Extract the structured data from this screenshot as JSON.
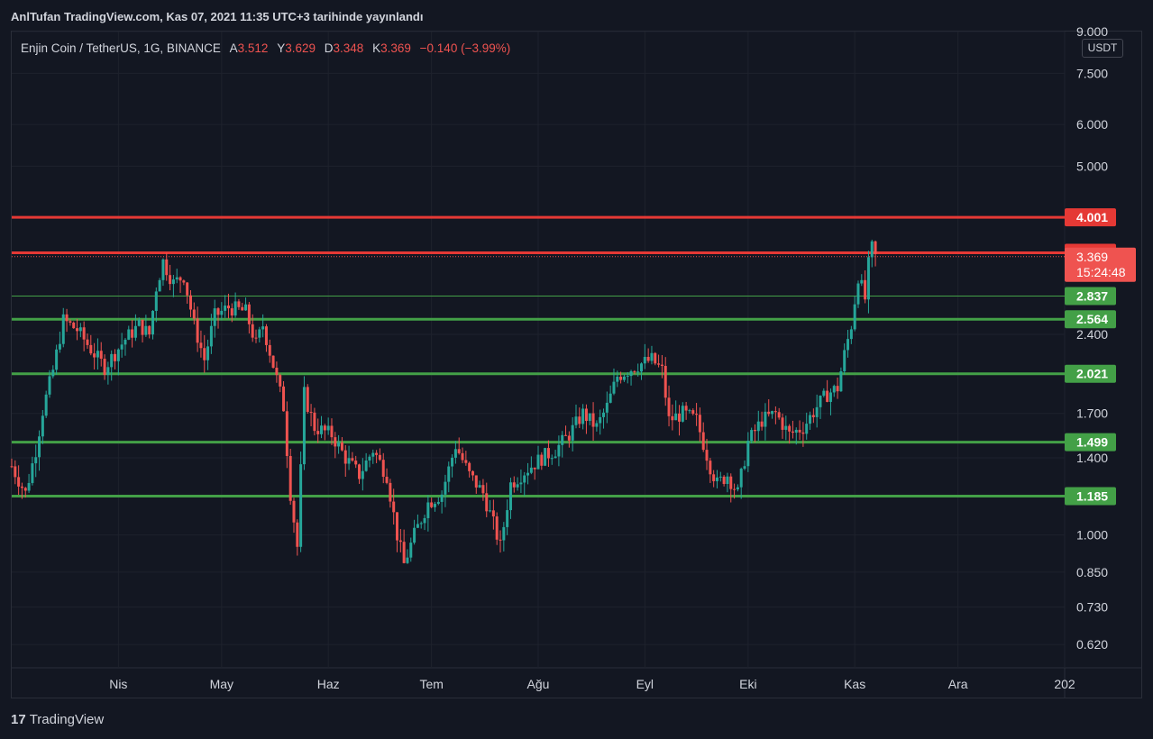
{
  "header": {
    "published": "AnlTufan TradingView.com, Kas 07, 2021 11:35 UTC+3 tarihinde yayınlandı"
  },
  "legend": {
    "symbol": "Enjin Coin / TetherUS, 1G, BINANCE",
    "open_label": "A",
    "open": "3.512",
    "high_label": "Y",
    "high": "3.629",
    "low_label": "D",
    "low": "3.348",
    "close_label": "K",
    "close": "3.369",
    "change": "−0.140 (−3.99%)"
  },
  "currency_badge": "USDT",
  "footer": {
    "logo_icon": "tradingview-logo-icon",
    "brand": "TradingView"
  },
  "colors": {
    "up": "#26a69a",
    "down": "#ef5350",
    "support": "#43a047",
    "resistance": "#e53935",
    "background": "#131722",
    "grid": "#1e222d"
  },
  "chart_data": {
    "type": "candlestick",
    "y_scale": "log",
    "ylim": [
      0.56,
      9.0
    ],
    "price_axis_ticks": [
      "9.000",
      "7.500",
      "6.000",
      "5.000",
      "2.400",
      "1.700",
      "1.400",
      "1.000",
      "0.850",
      "0.730",
      "0.620"
    ],
    "x_ticks": [
      {
        "label": "Nis",
        "date": "2021-04-01"
      },
      {
        "label": "May",
        "date": "2021-05-01"
      },
      {
        "label": "Haz",
        "date": "2021-06-01"
      },
      {
        "label": "Tem",
        "date": "2021-07-01"
      },
      {
        "label": "Ağu",
        "date": "2021-08-01"
      },
      {
        "label": "Eyl",
        "date": "2021-09-01"
      },
      {
        "label": "Eki",
        "date": "2021-10-01"
      },
      {
        "label": "Kas",
        "date": "2021-11-01"
      },
      {
        "label": "Ara",
        "date": "2021-12-01"
      },
      {
        "label": "202",
        "date": "2022-01-01"
      }
    ],
    "xlim": [
      "2021-03-01",
      "2022-01-01"
    ],
    "horizontal_levels": [
      {
        "value": 4.001,
        "label": "4.001",
        "kind": "resistance"
      },
      {
        "value": 3.427,
        "label": "3.427",
        "kind": "resistance"
      },
      {
        "value": 2.837,
        "label": "2.837",
        "kind": "support-thin"
      },
      {
        "value": 2.564,
        "label": "2.564",
        "kind": "support"
      },
      {
        "value": 2.021,
        "label": "2.021",
        "kind": "support"
      },
      {
        "value": 1.499,
        "label": "1.499",
        "kind": "support"
      },
      {
        "value": 1.185,
        "label": "1.185",
        "kind": "support"
      }
    ],
    "last_price": {
      "value": 3.369,
      "label": "3.369",
      "countdown": "15:24:48"
    },
    "price_anchors": [
      [
        "2021-03-01",
        1.35
      ],
      [
        "2021-03-05",
        1.2
      ],
      [
        "2021-03-08",
        1.45
      ],
      [
        "2021-03-10",
        1.72
      ],
      [
        "2021-03-13",
        2.05
      ],
      [
        "2021-03-16",
        2.55
      ],
      [
        "2021-03-20",
        2.45
      ],
      [
        "2021-03-24",
        2.25
      ],
      [
        "2021-03-28",
        2.08
      ],
      [
        "2021-04-03",
        2.35
      ],
      [
        "2021-04-07",
        2.5
      ],
      [
        "2021-04-10",
        2.4
      ],
      [
        "2021-04-12",
        2.95
      ],
      [
        "2021-04-14",
        3.3
      ],
      [
        "2021-04-17",
        3.0
      ],
      [
        "2021-04-20",
        3.1
      ],
      [
        "2021-04-23",
        2.5
      ],
      [
        "2021-04-26",
        2.15
      ],
      [
        "2021-04-29",
        2.6
      ],
      [
        "2021-05-03",
        2.7
      ],
      [
        "2021-05-08",
        2.65
      ],
      [
        "2021-05-11",
        2.3
      ],
      [
        "2021-05-13",
        2.5
      ],
      [
        "2021-05-16",
        2.1
      ],
      [
        "2021-05-19",
        1.75
      ],
      [
        "2021-05-21",
        1.2
      ],
      [
        "2021-05-23",
        0.95
      ],
      [
        "2021-05-25",
        1.85
      ],
      [
        "2021-05-28",
        1.6
      ],
      [
        "2021-06-02",
        1.55
      ],
      [
        "2021-06-06",
        1.4
      ],
      [
        "2021-06-10",
        1.3
      ],
      [
        "2021-06-14",
        1.45
      ],
      [
        "2021-06-18",
        1.3
      ],
      [
        "2021-06-21",
        1.0
      ],
      [
        "2021-06-23",
        0.88
      ],
      [
        "2021-06-26",
        1.0
      ],
      [
        "2021-06-30",
        1.15
      ],
      [
        "2021-07-04",
        1.2
      ],
      [
        "2021-07-08",
        1.48
      ],
      [
        "2021-07-12",
        1.3
      ],
      [
        "2021-07-16",
        1.2
      ],
      [
        "2021-07-19",
        1.05
      ],
      [
        "2021-07-21",
        0.95
      ],
      [
        "2021-07-24",
        1.25
      ],
      [
        "2021-07-28",
        1.32
      ],
      [
        "2021-08-02",
        1.4
      ],
      [
        "2021-08-06",
        1.45
      ],
      [
        "2021-08-10",
        1.55
      ],
      [
        "2021-08-14",
        1.7
      ],
      [
        "2021-08-18",
        1.6
      ],
      [
        "2021-08-21",
        1.75
      ],
      [
        "2021-08-24",
        2.0
      ],
      [
        "2021-08-27",
        2.05
      ],
      [
        "2021-08-30",
        2.1
      ],
      [
        "2021-09-03",
        2.15
      ],
      [
        "2021-09-06",
        2.05
      ],
      [
        "2021-09-08",
        1.65
      ],
      [
        "2021-09-12",
        1.7
      ],
      [
        "2021-09-16",
        1.65
      ],
      [
        "2021-09-20",
        1.35
      ],
      [
        "2021-09-22",
        1.25
      ],
      [
        "2021-09-25",
        1.3
      ],
      [
        "2021-09-28",
        1.2
      ],
      [
        "2021-10-01",
        1.5
      ],
      [
        "2021-10-05",
        1.65
      ],
      [
        "2021-10-09",
        1.7
      ],
      [
        "2021-10-13",
        1.55
      ],
      [
        "2021-10-17",
        1.6
      ],
      [
        "2021-10-21",
        1.75
      ],
      [
        "2021-10-24",
        1.85
      ],
      [
        "2021-10-27",
        1.9
      ],
      [
        "2021-10-29",
        2.2
      ],
      [
        "2021-10-31",
        2.5
      ],
      [
        "2021-11-02",
        3.1
      ],
      [
        "2021-11-04",
        2.8
      ],
      [
        "2021-11-05",
        3.25
      ],
      [
        "2021-11-06",
        3.5
      ],
      [
        "2021-11-07",
        3.369
      ]
    ]
  }
}
